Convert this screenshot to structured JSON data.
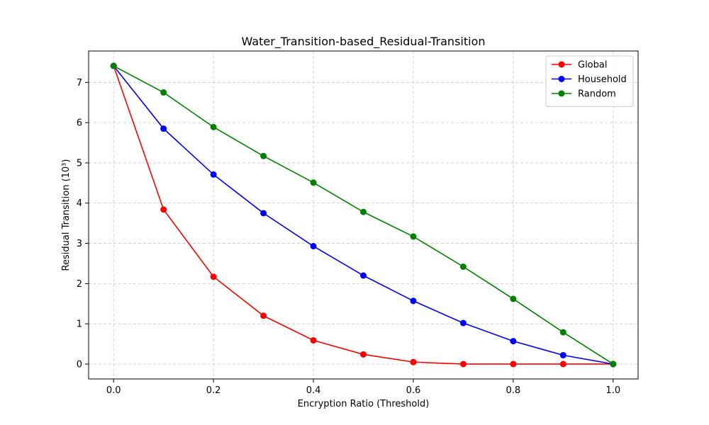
{
  "chart_data": {
    "type": "line",
    "title": "Water_Transition-based_Residual-Transition",
    "xlabel": "Encryption Ratio (Threshold)",
    "ylabel": "Residual Transition (10³)",
    "x": [
      0.0,
      0.1,
      0.2,
      0.3,
      0.4,
      0.5,
      0.6,
      0.7,
      0.8,
      0.9,
      1.0
    ],
    "xlim": [
      -0.05,
      1.05
    ],
    "ylim": [
      -0.37,
      7.78
    ],
    "x_ticks": [
      0.0,
      0.2,
      0.4,
      0.6,
      0.8,
      1.0
    ],
    "x_tick_labels": [
      "0.0",
      "0.2",
      "0.4",
      "0.6",
      "0.8",
      "1.0"
    ],
    "y_ticks": [
      0,
      1,
      2,
      3,
      4,
      5,
      6,
      7
    ],
    "y_tick_labels": [
      "0",
      "1",
      "2",
      "3",
      "4",
      "5",
      "6",
      "7"
    ],
    "grid": true,
    "legend_position": "top-right",
    "series": [
      {
        "name": "Global",
        "color": "#ff0000",
        "values": [
          7.41,
          3.84,
          2.17,
          1.2,
          0.59,
          0.24,
          0.05,
          0.0,
          0.0,
          0.0,
          0.0
        ]
      },
      {
        "name": "Household",
        "color": "#0000ff",
        "values": [
          7.41,
          5.85,
          4.71,
          3.75,
          2.93,
          2.2,
          1.57,
          1.02,
          0.57,
          0.22,
          0.0
        ]
      },
      {
        "name": "Random",
        "color": "#008000",
        "values": [
          7.41,
          6.75,
          5.89,
          5.17,
          4.51,
          3.78,
          3.17,
          2.42,
          1.62,
          0.79,
          0.0
        ]
      }
    ]
  }
}
